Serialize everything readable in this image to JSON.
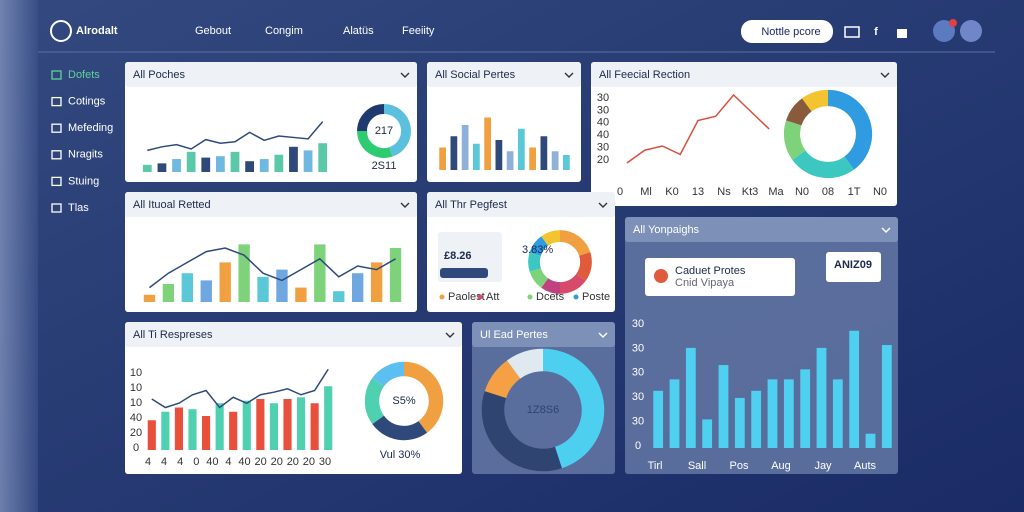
{
  "header": {
    "logo": "Alrodalt",
    "menu": [
      "Gebout",
      "Congim",
      "Alatüs",
      "Feeiity"
    ],
    "button": "Nottle pcore"
  },
  "sidebar": [
    "Dofets",
    "Cotings",
    "Mefeding",
    "Nragits",
    "Stuing",
    "Tlas"
  ],
  "panels": [
    {
      "title": "All Poches",
      "bars": [
        10,
        12,
        18,
        28,
        20,
        22,
        28,
        15,
        18,
        24,
        35,
        30,
        40
      ],
      "colors": [
        "#5bc8a8",
        "#2f4a7a",
        "#6fb8e0"
      ],
      "line": [
        30,
        35,
        38,
        32,
        45,
        40,
        42,
        55,
        44,
        50,
        48,
        46,
        70
      ],
      "donut": [
        45,
        30,
        25
      ],
      "donut_colors": [
        "#5bc0de",
        "#2ecc71",
        "#1f3a6e"
      ],
      "donut_label": "217",
      "caption": "2S11"
    },
    {
      "title": "All Social Pertes",
      "bars": [
        30,
        45,
        60,
        35,
        70,
        40,
        25,
        55,
        30,
        45,
        25,
        20
      ],
      "colors": [
        "#f0a040",
        "#2f4a7a",
        "#8fb0d8",
        "#5bc8d8"
      ]
    },
    {
      "title": "All Feecial Rection",
      "line": [
        20,
        35,
        40,
        30,
        70,
        75,
        100,
        80,
        60
      ],
      "line_color": "#d9503c",
      "donut": [
        40,
        25,
        15,
        10,
        10
      ],
      "donut_colors": [
        "#2f9be0",
        "#3cc8c0",
        "#7ed37a",
        "#8a5a3c",
        "#f4c430"
      ],
      "y_labels": [
        "30",
        "30",
        "40",
        "40",
        "30",
        "20"
      ],
      "x_labels": [
        "0",
        "Ml",
        "K0",
        "13",
        "Ns",
        "Kt3",
        "Ma",
        "N0",
        "08",
        "1T",
        "N0"
      ]
    },
    {
      "title": "All Ituoal Retted",
      "bars": [
        10,
        25,
        40,
        30,
        55,
        80,
        35,
        45,
        20,
        80,
        15,
        40,
        55,
        75
      ],
      "colors": [
        "#f0a040",
        "#7ed37a",
        "#5bc8d8",
        "#6fa8e0"
      ],
      "line": [
        20,
        40,
        55,
        70,
        75,
        65,
        40,
        30,
        45,
        60,
        35,
        50,
        45,
        60
      ]
    },
    {
      "title": "All Thr Pegfest",
      "stat": "3.83%",
      "amount": "£8.26",
      "legend": [
        "Paolest",
        "Att",
        "Dcets",
        "Poste"
      ],
      "donut": [
        20,
        15,
        15,
        10,
        10,
        10,
        10,
        10
      ],
      "donut_colors": [
        "#f0a040",
        "#e05a3c",
        "#d94a6a",
        "#c04080",
        "#7ed37a",
        "#3cc8c0",
        "#2f9be0",
        "#f4c430"
      ]
    },
    {
      "title": "All Yonpaighs",
      "bars": [
        40,
        48,
        70,
        20,
        58,
        35,
        40,
        48,
        48,
        55,
        70,
        48,
        82,
        10,
        72
      ],
      "colors": [
        "#4fd0f0"
      ],
      "x_labels": [
        "Tirl",
        "Sall",
        "Pos",
        "Aug",
        "Jay",
        "Auts"
      ],
      "y_labels": [
        "30",
        "30",
        "30",
        "30",
        "30",
        "0"
      ],
      "card_title": "Caduet Protes",
      "card_sub": "Cnid Vipaya",
      "badge": "ANIZ09"
    },
    {
      "title": "All Ti Respreses",
      "bars": [
        35,
        45,
        50,
        48,
        40,
        55,
        45,
        58,
        60,
        55,
        60,
        62,
        55,
        75
      ],
      "colors": [
        "#e8503c",
        "#4fd0b0"
      ],
      "line": [
        60,
        50,
        55,
        65,
        70,
        50,
        62,
        55,
        65,
        68,
        72,
        65,
        70,
        95
      ],
      "donut": [
        40,
        25,
        20,
        15
      ],
      "donut_colors": [
        "#f0a040",
        "#2f4a7a",
        "#4fd0b0",
        "#5bc0f0"
      ],
      "donut_label": "S5%",
      "caption": "Vul 30%",
      "y_labels": [
        "10",
        "10",
        "10",
        "40",
        "20",
        "0"
      ],
      "x_labels": [
        "4",
        "4",
        "4",
        "0",
        "40",
        "4",
        "40",
        "20",
        "20",
        "20",
        "20",
        "30"
      ]
    },
    {
      "title": "Ul Ead Pertes",
      "donut": [
        45,
        35,
        10,
        10
      ],
      "donut_colors": [
        "#4dd0f0",
        "#2f4470",
        "#f5a044",
        "#e0e8f0"
      ],
      "donut_label": "1Z8S6"
    }
  ]
}
